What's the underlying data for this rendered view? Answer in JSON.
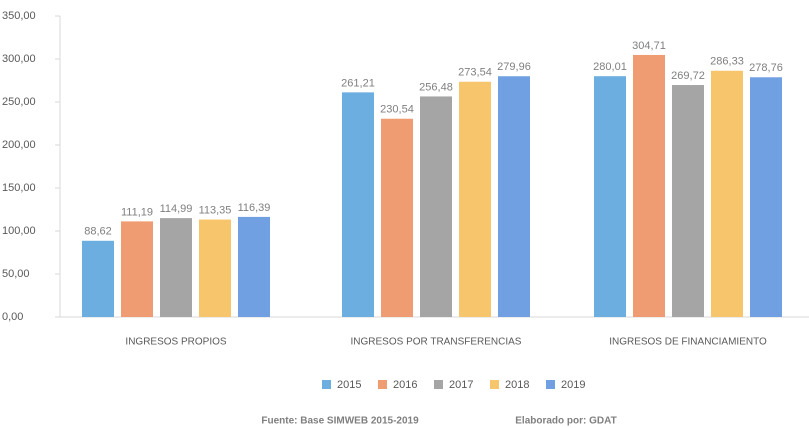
{
  "chart_data": {
    "type": "bar",
    "categories": [
      "INGRESOS PROPIOS",
      "INGRESOS POR TRANSFERENCIAS",
      "INGRESOS DE FINANCIAMIENTO"
    ],
    "series": [
      {
        "name": "2015",
        "color": "#6daee0",
        "values": [
          88.62,
          261.21,
          280.01
        ],
        "value_labels": [
          "88,62",
          "261,21",
          "280,01"
        ]
      },
      {
        "name": "2016",
        "color": "#ef9c72",
        "values": [
          111.19,
          230.54,
          304.71
        ],
        "value_labels": [
          "111,19",
          "230,54",
          "304,71"
        ]
      },
      {
        "name": "2017",
        "color": "#a5a5a5",
        "values": [
          114.99,
          256.48,
          269.72
        ],
        "value_labels": [
          "114,99",
          "256,48",
          "269,72"
        ]
      },
      {
        "name": "2018",
        "color": "#f7c66c",
        "values": [
          113.35,
          273.54,
          286.33
        ],
        "value_labels": [
          "113,35",
          "273,54",
          "286,33"
        ]
      },
      {
        "name": "2019",
        "color": "#70a0e2",
        "values": [
          116.39,
          279.96,
          278.76
        ],
        "value_labels": [
          "116,39",
          "279,96",
          "278,76"
        ]
      }
    ],
    "ylim": [
      0,
      350
    ],
    "yticks": [
      {
        "value": 0,
        "label": "0,00"
      },
      {
        "value": 50,
        "label": "50,00"
      },
      {
        "value": 100,
        "label": "100,00"
      },
      {
        "value": 150,
        "label": "150,00"
      },
      {
        "value": 200,
        "label": "200,00"
      },
      {
        "value": 250,
        "label": "250,00"
      },
      {
        "value": 300,
        "label": "300,00"
      },
      {
        "value": 350,
        "label": "350,00"
      }
    ],
    "grid": false,
    "legend": "bottom",
    "source": "Fuente: Base SIMWEB 2015-2019",
    "credit": "Elaborado por: GDAT"
  }
}
